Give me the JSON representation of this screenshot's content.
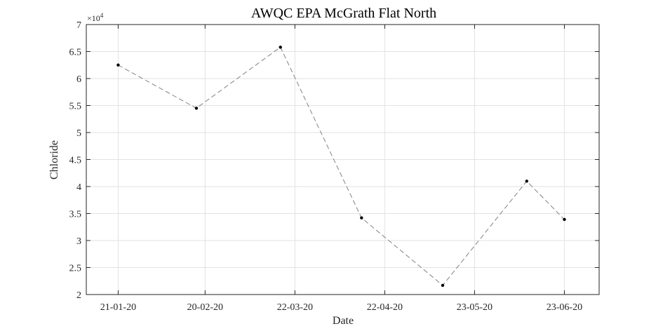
{
  "chart_data": {
    "type": "line",
    "title": "AWQC EPA McGrath Flat North",
    "xlabel": "Date",
    "ylabel": "Chloride",
    "y_exponent_label": "×10",
    "y_exponent_power": "4",
    "y_multiplier": 10000,
    "ylim": [
      2,
      7
    ],
    "yticks": [
      2,
      2.5,
      3,
      3.5,
      4,
      4.5,
      5,
      5.5,
      6,
      6.5,
      7
    ],
    "ytick_labels": [
      "2",
      "2.5",
      "3",
      "3.5",
      "4",
      "4.5",
      "5",
      "5.5",
      "6",
      "6.5",
      "7"
    ],
    "xlim": [
      "2020-01-10",
      "2020-07-05"
    ],
    "xticks": [
      "2020-01-21",
      "2020-02-20",
      "2020-03-22",
      "2020-04-22",
      "2020-05-23",
      "2020-06-23"
    ],
    "xtick_labels": [
      "21-01-20",
      "20-02-20",
      "22-03-20",
      "22-04-20",
      "23-05-20",
      "23-06-20"
    ],
    "grid": true,
    "series": [
      {
        "line_style": "dashed",
        "line_color": "#8c8c8c",
        "marker_color": "#000000",
        "points": [
          {
            "x": "2020-01-21",
            "y": 62500
          },
          {
            "x": "2020-02-17",
            "y": 54500
          },
          {
            "x": "2020-03-17",
            "y": 65800
          },
          {
            "x": "2020-04-14",
            "y": 34200
          },
          {
            "x": "2020-05-12",
            "y": 21700
          },
          {
            "x": "2020-06-10",
            "y": 41000
          },
          {
            "x": "2020-06-23",
            "y": 33900
          }
        ]
      }
    ]
  }
}
